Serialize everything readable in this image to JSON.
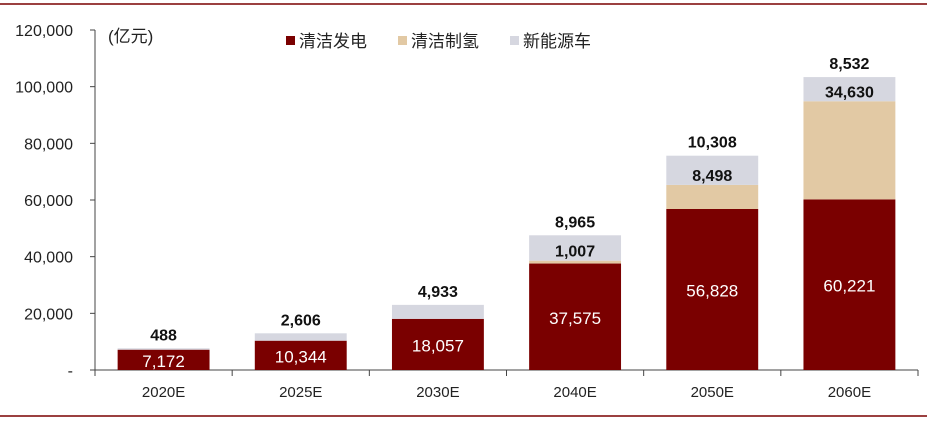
{
  "chart_data": {
    "type": "bar",
    "stacked": true,
    "unit_label": "(亿元)",
    "categories": [
      "2020E",
      "2025E",
      "2030E",
      "2040E",
      "2050E",
      "2060E"
    ],
    "series": [
      {
        "name": "清洁发电",
        "values": [
          7172,
          10344,
          18057,
          37575,
          56828,
          60221
        ],
        "color": "#7a0000"
      },
      {
        "name": "清洁制氢",
        "values": [
          0,
          0,
          0,
          1007,
          8498,
          34630
        ],
        "color": "#e2c9a4"
      },
      {
        "name": "新能源车",
        "values": [
          488,
          2606,
          4933,
          8965,
          10308,
          8532
        ],
        "color": "#d6d7e0"
      }
    ],
    "data_labels": [
      [
        "7,172",
        "10,344",
        "18,057",
        "37,575",
        "56,828",
        "60,221"
      ],
      [
        "",
        "",
        "",
        "1,007",
        "8,498",
        "34,630"
      ],
      [
        "488",
        "2,606",
        "4,933",
        "8,965",
        "10,308",
        "8,532"
      ]
    ],
    "yticks": [
      {
        "value": 0,
        "label": "-"
      },
      {
        "value": 20000,
        "label": "20,000"
      },
      {
        "value": 40000,
        "label": "40,000"
      },
      {
        "value": 60000,
        "label": "60,000"
      },
      {
        "value": 80000,
        "label": "80,000"
      },
      {
        "value": 100000,
        "label": "100,000"
      },
      {
        "value": 120000,
        "label": "120,000"
      }
    ],
    "ylim": [
      0,
      120000
    ],
    "legend_position": "top-center",
    "grid": false
  }
}
